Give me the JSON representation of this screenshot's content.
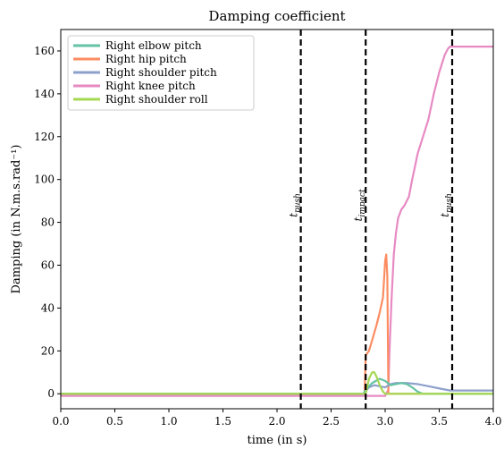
{
  "chart_data": {
    "type": "line",
    "title": "Damping coefficient",
    "xlabel": "time (in s)",
    "ylabel": "Damping (in N.m.s.rad⁻¹)",
    "xlim": [
      0.0,
      4.0
    ],
    "ylim": [
      -7,
      170
    ],
    "xticks": [
      0.0,
      0.5,
      1.0,
      1.5,
      2.0,
      2.5,
      3.0,
      3.5,
      4.0
    ],
    "xtick_labels": [
      "0.0",
      "0.5",
      "1.0",
      "1.5",
      "2.0",
      "2.5",
      "3.0",
      "3.5",
      "4.0"
    ],
    "yticks": [
      0,
      20,
      40,
      60,
      80,
      100,
      120,
      140,
      160
    ],
    "ytick_labels": [
      "0",
      "20",
      "40",
      "60",
      "80",
      "100",
      "120",
      "140",
      "160"
    ],
    "grid": false,
    "legend_position": "top-left",
    "series": [
      {
        "name": "Right elbow pitch",
        "color": "#66c2a5",
        "x": [
          0.0,
          2.8,
          2.82,
          2.88,
          2.95,
          3.0,
          3.05,
          3.1,
          3.15,
          3.2,
          3.25,
          3.3,
          3.35,
          4.0
        ],
        "y": [
          0,
          0,
          2,
          5,
          7,
          6,
          4,
          4.5,
          5,
          4.5,
          3,
          1,
          0,
          0
        ]
      },
      {
        "name": "Right hip pitch",
        "color": "#fc8d62",
        "x": [
          0.0,
          2.81,
          2.82,
          2.85,
          2.88,
          2.92,
          2.95,
          2.98,
          3.0,
          3.01,
          3.02,
          3.03,
          3.05,
          4.0
        ],
        "y": [
          0,
          0,
          18,
          20,
          25,
          32,
          38,
          45,
          62,
          65,
          55,
          0,
          0,
          0
        ]
      },
      {
        "name": "Right shoulder pitch",
        "color": "#8da0cb",
        "x": [
          0.0,
          2.8,
          2.85,
          2.9,
          3.0,
          3.05,
          3.1,
          3.2,
          3.3,
          3.4,
          3.5,
          3.6,
          4.0
        ],
        "y": [
          0,
          0,
          3,
          4,
          3,
          4.5,
          5,
          5,
          4.5,
          3.5,
          2.5,
          1.5,
          1.5
        ]
      },
      {
        "name": "Right knee pitch",
        "color": "#e78ac3",
        "x": [
          0.0,
          3.0,
          3.03,
          3.04,
          3.06,
          3.08,
          3.1,
          3.12,
          3.15,
          3.18,
          3.22,
          3.25,
          3.28,
          3.3,
          3.35,
          3.4,
          3.45,
          3.5,
          3.55,
          3.58,
          3.6,
          3.62,
          4.0
        ],
        "y": [
          -1,
          -1,
          2,
          20,
          45,
          65,
          75,
          82,
          86,
          88,
          92,
          100,
          107,
          112,
          120,
          128,
          140,
          150,
          158,
          161,
          162,
          162,
          162
        ]
      },
      {
        "name": "Right shoulder roll",
        "color": "#a6d854",
        "x": [
          0.0,
          2.82,
          2.85,
          2.88,
          2.9,
          2.92,
          2.95,
          2.98,
          3.0,
          3.05,
          4.0
        ],
        "y": [
          0,
          0,
          7,
          10,
          10,
          8,
          4,
          1,
          0,
          0,
          0
        ]
      }
    ],
    "annotations": [
      {
        "x": 2.22,
        "label_base": "t",
        "label_sub": "push",
        "label_y": 88
      },
      {
        "x": 2.82,
        "label_base": "t",
        "label_sub": "impact",
        "label_y": 88
      },
      {
        "x": 3.62,
        "label_base": "t",
        "label_sub": "push",
        "label_y": 88
      }
    ]
  }
}
